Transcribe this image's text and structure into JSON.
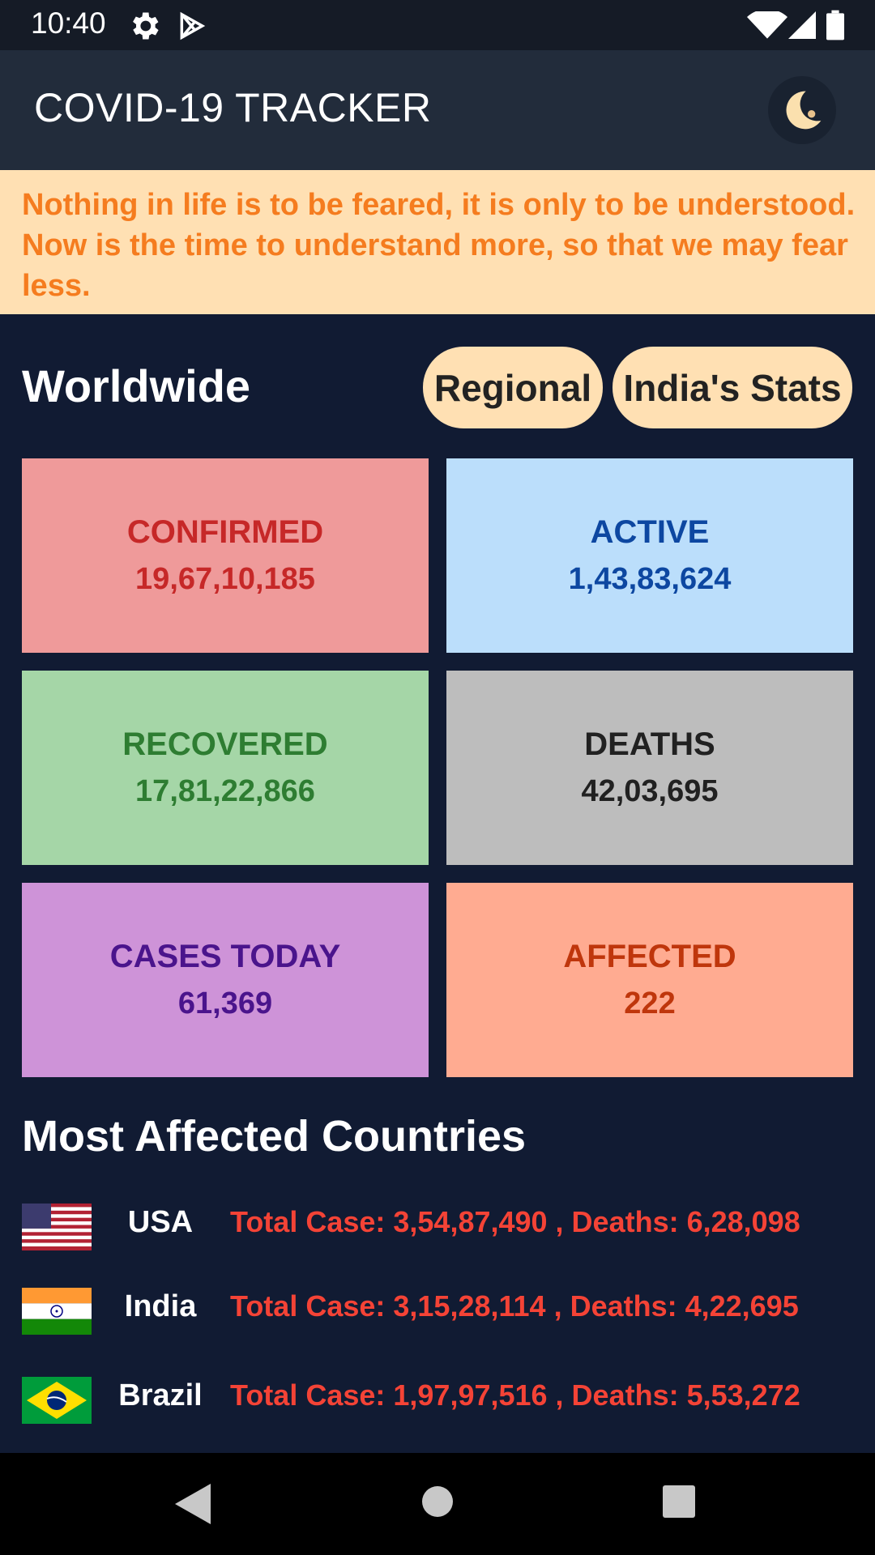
{
  "status_bar": {
    "time": "10:40",
    "icons": [
      "gear-icon",
      "play-store-icon",
      "wifi-icon",
      "signal-icon",
      "battery-icon"
    ]
  },
  "app_bar": {
    "title": "COVID-19 TRACKER",
    "theme_toggle_icon": "moon-icon"
  },
  "banner": {
    "quote": "Nothing in life is to be feared, it is only to be understood. Now is the time to understand more, so that we may fear less."
  },
  "worldwide": {
    "title": "Worldwide",
    "buttons": {
      "regional": "Regional",
      "india_stats": "India's Stats"
    },
    "cards": [
      {
        "label": "CONFIRMED",
        "value": "19,67,10,185",
        "bg": "#ef9a9a",
        "fg": "#c62828"
      },
      {
        "label": "ACTIVE",
        "value": "1,43,83,624",
        "bg": "#bbdefb",
        "fg": "#0d47a1"
      },
      {
        "label": "RECOVERED",
        "value": "17,81,22,866",
        "bg": "#a5d6a7",
        "fg": "#2e7d32"
      },
      {
        "label": "DEATHS",
        "value": "42,03,695",
        "bg": "#bdbdbd",
        "fg": "#212121"
      },
      {
        "label": "CASES TODAY",
        "value": "61,369",
        "bg": "#ce93d8",
        "fg": "#4a148c"
      },
      {
        "label": "AFFECTED",
        "value": "222",
        "bg": "#ffab91",
        "fg": "#bf360c"
      }
    ]
  },
  "most_affected": {
    "title": "Most Affected Countries",
    "countries": [
      {
        "name": "USA",
        "stats": "Total Case: 3,54,87,490 ,  Deaths: 6,28,098",
        "flag": "usa-flag-icon"
      },
      {
        "name": "India",
        "stats": "Total Case: 3,15,28,114 ,  Deaths: 4,22,695",
        "flag": "india-flag-icon"
      },
      {
        "name": "Brazil",
        "stats": "Total Case: 1,97,97,516 ,  Deaths: 5,53,272",
        "flag": "brazil-flag-icon"
      }
    ]
  },
  "nav_bar": {
    "icons": [
      "back-icon",
      "home-icon",
      "recents-icon"
    ]
  }
}
